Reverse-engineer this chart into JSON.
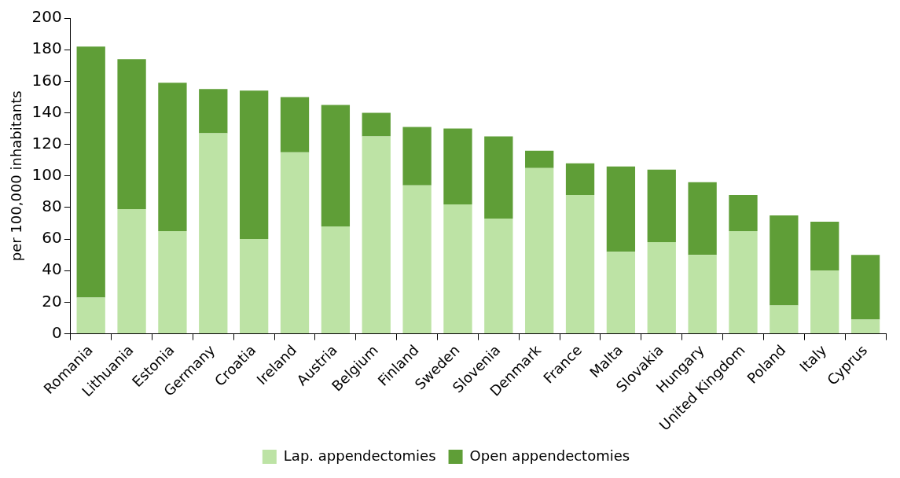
{
  "chart_data": {
    "type": "bar",
    "stacked": true,
    "ylabel": "per 100,000 inhabitants",
    "categories": [
      "Romania",
      "Lithuania",
      "Estonia",
      "Germany",
      "Croatia",
      "Ireland",
      "Austria",
      "Belgium",
      "Finland",
      "Sweden",
      "Slovenia",
      "Denmark",
      "France",
      "Malta",
      "Slovakia",
      "Hungary",
      "United Kingdom",
      "Poland",
      "Italy",
      "Cyprus"
    ],
    "series": [
      {
        "name": "Lap. appendectomies",
        "color": "#bde3a5",
        "values": [
          23,
          79,
          65,
          127,
          60,
          115,
          68,
          125,
          94,
          82,
          73,
          105,
          88,
          52,
          58,
          50,
          65,
          18,
          40,
          9
        ]
      },
      {
        "name": "Open appendectomies",
        "color": "#5f9e37",
        "values": [
          159,
          95,
          94,
          28,
          94,
          35,
          77,
          15,
          37,
          48,
          52,
          11,
          20,
          54,
          46,
          46,
          23,
          57,
          31,
          41
        ]
      }
    ],
    "ylim": [
      0,
      200
    ],
    "yticks": [
      0,
      20,
      40,
      60,
      80,
      100,
      120,
      140,
      160,
      180,
      200
    ],
    "legend": "bottom"
  }
}
